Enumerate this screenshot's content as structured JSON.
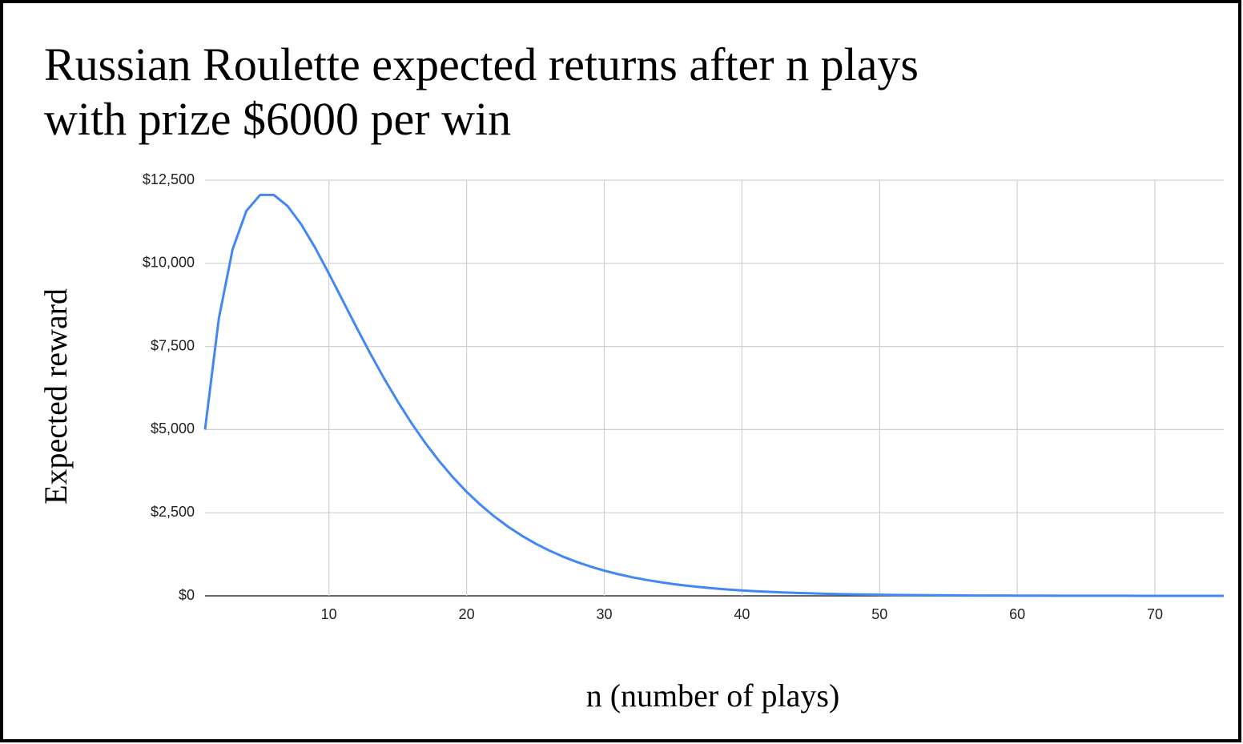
{
  "chart_data": {
    "type": "line",
    "title": "Russian Roulette expected returns after n plays with prize $6000 per win",
    "x_label": "n (number of plays)",
    "y_label": "Expected reward",
    "x": [
      1,
      2,
      3,
      4,
      5,
      6,
      7,
      8,
      9,
      10,
      11,
      12,
      13,
      14,
      15,
      16,
      17,
      18,
      19,
      20,
      21,
      22,
      23,
      24,
      25,
      26,
      27,
      28,
      29,
      30,
      31,
      32,
      33,
      34,
      35,
      36,
      37,
      38,
      39,
      40,
      41,
      42,
      43,
      44,
      45,
      46,
      47,
      48,
      49,
      50,
      51,
      52,
      53,
      54,
      55,
      56,
      57,
      58,
      59,
      60,
      61,
      62,
      63,
      64,
      65,
      66,
      67,
      68,
      69,
      70,
      71,
      72,
      73,
      74,
      75
    ],
    "series": [
      {
        "name": "Expected reward",
        "color": "#4287f5",
        "values": [
          5000,
          8333,
          10417,
          11574,
          12056,
          12056,
          11721,
          11163,
          10466,
          9690,
          8883,
          8075,
          7290,
          6543,
          5843,
          5192,
          4597,
          4057,
          3568,
          3130,
          2739,
          2391,
          2083,
          1811,
          1572,
          1363,
          1179,
          1019,
          880,
          758,
          653,
          562,
          483,
          415,
          356,
          305,
          261,
          223,
          191,
          163,
          139,
          119,
          102,
          87,
          74,
          63,
          54,
          46,
          39,
          33,
          28,
          24,
          20,
          17,
          15,
          12,
          10,
          9,
          8,
          6,
          5,
          5,
          4,
          3,
          3,
          2,
          2,
          2,
          1,
          1,
          1,
          1,
          1,
          0,
          0
        ]
      }
    ],
    "xlim": [
      1,
      75
    ],
    "xticks": [
      10,
      20,
      30,
      40,
      50,
      60,
      70
    ],
    "ylim": [
      0,
      12500
    ],
    "yticks": [
      {
        "value": 0,
        "label": "$0"
      },
      {
        "value": 2500,
        "label": "$2,500"
      },
      {
        "value": 5000,
        "label": "$5,000"
      },
      {
        "value": 7500,
        "label": "$7,500"
      },
      {
        "value": 10000,
        "label": "$10,000"
      },
      {
        "value": 12500,
        "label": "$12,500"
      }
    ],
    "grid": true
  }
}
